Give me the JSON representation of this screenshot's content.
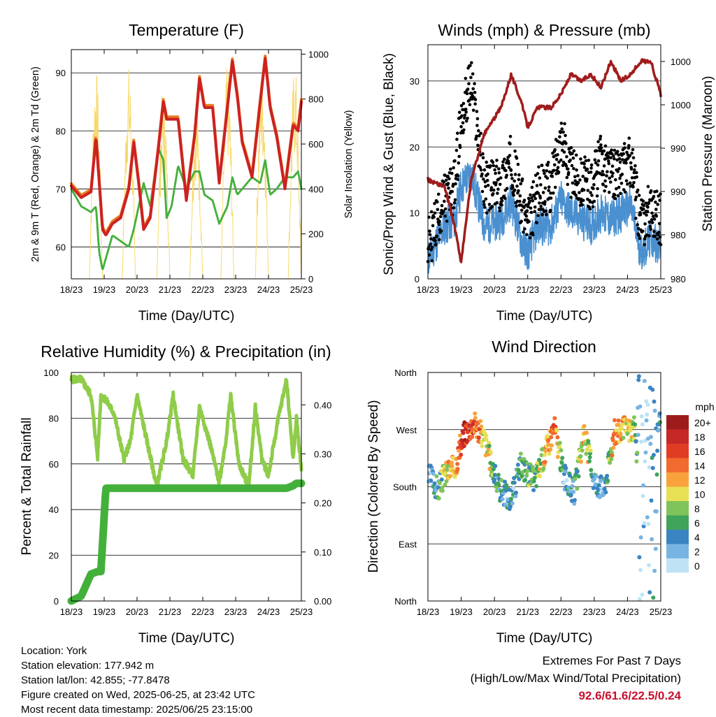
{
  "colors": {
    "temp_red": "#cc2222",
    "temp_orange": "#e87a22",
    "dewpoint_green": "#44b03c",
    "solar_yellow": "#f7d96a",
    "wind_blue": "#4a90d0",
    "gust_black": "#000000",
    "pressure_maroon": "#a01c1c",
    "rh_lightgreen": "#8fcc4a",
    "rain_green": "#44b03c",
    "extremes_red": "#c8102e"
  },
  "x_ticks": [
    "18/23",
    "19/23",
    "20/23",
    "21/23",
    "22/23",
    "23/23",
    "24/23",
    "25/23"
  ],
  "chart_data": [
    {
      "type": "line",
      "id": "temperature",
      "title": "Temperature (F)",
      "xlabel": "Time (Day/UTC)",
      "ylabel": "2m & 9m T (Red, Orange) & 2m Td (Green)",
      "ylabel_right": "Solar Insolation (Yellow)",
      "ylim": [
        54.5,
        94
      ],
      "y_ticks": [
        60,
        70,
        80,
        90
      ],
      "y2lim": [
        0,
        1020
      ],
      "y2_ticks": [
        0,
        200,
        400,
        600,
        800,
        1000
      ],
      "grid": true,
      "x": [
        0,
        0.3,
        0.6,
        0.75,
        0.85,
        0.95,
        1.05,
        1.25,
        1.5,
        1.75,
        1.9,
        2.05,
        2.2,
        2.4,
        2.65,
        2.8,
        2.9,
        3.05,
        3.25,
        3.5,
        3.75,
        3.9,
        4.05,
        4.3,
        4.5,
        4.75,
        4.9,
        5.05,
        5.2,
        5.5,
        5.75,
        5.9,
        6.05,
        6.25,
        6.5,
        6.75,
        6.9,
        7.0
      ],
      "series": [
        {
          "name": "2m & 9m T",
          "y": [
            70.5,
            68.5,
            69.5,
            79,
            71,
            63,
            62,
            64,
            65,
            70,
            78,
            71,
            63,
            65,
            77,
            85,
            82,
            82,
            82,
            68,
            79,
            89,
            84,
            84,
            71,
            84,
            92,
            86,
            78,
            72,
            85,
            92.5,
            84,
            79,
            70,
            81,
            80,
            85
          ]
        },
        {
          "name": "2m Td",
          "y": [
            70,
            67,
            66,
            67,
            59,
            56,
            58,
            62,
            61,
            60,
            63,
            67,
            71,
            67,
            77,
            75,
            65,
            67,
            74,
            70,
            73,
            73,
            69,
            68,
            64,
            67,
            72,
            69,
            70,
            72,
            71,
            75,
            69,
            70,
            72,
            72,
            73,
            70
          ]
        }
      ],
      "solar_series": {
        "name": "Solar Insolation",
        "peaks_x": [
          0.75,
          1.75,
          2.8,
          3.8,
          4.75,
          5.8,
          6.8
        ],
        "peaks_y": [
          940,
          950,
          860,
          790,
          950,
          960,
          960
        ]
      }
    },
    {
      "type": "line",
      "id": "winds",
      "title": "Winds (mph) & Pressure (mb)",
      "xlabel": "Time (Day/UTC)",
      "ylabel": "Sonic/Prop Wind & Gust (Blue, Black)",
      "ylabel_right": "Station Pressure (Maroon)",
      "ylim": [
        0,
        35.5
      ],
      "y_ticks": [
        0,
        10,
        20,
        30
      ],
      "y2_tick_labels": [
        "980",
        "980",
        "990",
        "990",
        "1000",
        "1000"
      ],
      "grid": true,
      "x": [
        0,
        0.5,
        0.8,
        1.0,
        1.3,
        1.7,
        2.2,
        2.5,
        2.8,
        3.0,
        3.3,
        3.7,
        4.0,
        4.3,
        4.6,
        4.9,
        5.2,
        5.5,
        5.8,
        6.1,
        6.4,
        6.7,
        7.0
      ],
      "series": [
        {
          "name": "Sonic/Prop Wind",
          "y": [
            3,
            8,
            9,
            14,
            16,
            8,
            9,
            12,
            6,
            4,
            8,
            8,
            12,
            10,
            9,
            8,
            10,
            9,
            10,
            11,
            4,
            6,
            5
          ]
        },
        {
          "name": "Gust",
          "y": [
            5,
            12,
            14,
            24,
            30,
            14,
            14,
            18,
            12,
            8,
            13,
            14,
            22,
            16,
            15,
            14,
            18,
            16,
            16,
            18,
            8,
            11,
            9
          ]
        },
        {
          "name": "Station Pressure",
          "y": [
            15,
            14,
            8,
            2.5,
            15,
            22,
            26,
            31,
            27,
            23,
            26,
            26,
            28,
            31,
            30,
            31,
            29,
            33,
            30,
            31,
            33,
            33,
            28
          ]
        }
      ]
    },
    {
      "type": "line",
      "id": "humidity",
      "title": "Relative Humidity (%) & Precipitation (in)",
      "xlabel": "Time (Day/UTC)",
      "ylabel": "Percent & Total Rainfall",
      "ylim": [
        0,
        100
      ],
      "y_ticks": [
        0,
        20,
        40,
        60,
        80,
        100
      ],
      "y2lim": [
        0,
        0.466
      ],
      "y2_tick_labels": [
        "0.00",
        "0.10",
        "0.20",
        "0.30",
        "0.40"
      ],
      "grid": true,
      "x": [
        0,
        0.3,
        0.6,
        0.8,
        0.9,
        1.05,
        1.3,
        1.6,
        1.8,
        2.0,
        2.3,
        2.6,
        2.9,
        3.1,
        3.4,
        3.7,
        3.9,
        4.2,
        4.5,
        4.7,
        4.85,
        5.1,
        5.4,
        5.6,
        5.8,
        6.0,
        6.3,
        6.55,
        6.75,
        6.85,
        7.0
      ],
      "series": [
        {
          "name": "Relative Humidity",
          "y": [
            97,
            97,
            90,
            63,
            90,
            88,
            82,
            62,
            70,
            90,
            70,
            50,
            70,
            90,
            62,
            55,
            85,
            70,
            52,
            70,
            90,
            60,
            50,
            85,
            62,
            55,
            80,
            97,
            62,
            80,
            58
          ]
        },
        {
          "name": "Total Rainfall",
          "y": [
            0,
            0.01,
            0.055,
            0.06,
            0.06,
            0.23,
            0.23,
            0.23,
            0.23,
            0.23,
            0.23,
            0.23,
            0.23,
            0.23,
            0.23,
            0.23,
            0.23,
            0.23,
            0.23,
            0.23,
            0.23,
            0.23,
            0.23,
            0.23,
            0.23,
            0.23,
            0.23,
            0.23,
            0.235,
            0.24,
            0.24
          ]
        }
      ]
    },
    {
      "type": "scatter",
      "id": "direction",
      "title": "Wind Direction",
      "xlabel": "Time (Day/UTC)",
      "ylabel": "Direction (Colored By Speed)",
      "y_tick_labels": [
        "North",
        "East",
        "South",
        "West",
        "North"
      ],
      "ylim": [
        0,
        360
      ],
      "grid": true,
      "colorbar": {
        "title": "mph",
        "labels": [
          "20+",
          "18",
          "16",
          "14",
          "12",
          "10",
          "8",
          "6",
          "4",
          "2",
          "0"
        ],
        "colors": [
          "#9e1b1b",
          "#c62828",
          "#e03c24",
          "#f26b2e",
          "#f9a23c",
          "#e8e054",
          "#7fc45a",
          "#3fa35a",
          "#3a84c2",
          "#78b4e2",
          "#bfe3f5"
        ]
      },
      "x": [
        0.1,
        0.3,
        0.5,
        0.8,
        1.1,
        1.4,
        1.7,
        2.1,
        2.5,
        2.8,
        3.2,
        3.5,
        3.8,
        4.1,
        4.4,
        4.7,
        5.0,
        5.3,
        5.6,
        5.9,
        6.2,
        6.4,
        6.6,
        6.8,
        6.95
      ],
      "y": [
        195,
        175,
        200,
        210,
        265,
        280,
        255,
        180,
        160,
        215,
        190,
        230,
        275,
        195,
        170,
        265,
        190,
        175,
        265,
        270,
        270,
        180,
        90,
        300,
        280
      ],
      "speed": [
        4,
        6,
        10,
        14,
        18,
        16,
        12,
        6,
        4,
        6,
        8,
        12,
        16,
        4,
        6,
        12,
        5,
        4,
        14,
        12,
        10,
        2,
        1,
        6,
        4
      ]
    }
  ],
  "footer": {
    "location": "Location: York",
    "elevation": "Station elevation: 177.942 m",
    "latlon": "Station lat/lon: 42.855; -77.8478",
    "created": "Figure created on Wed, 2025-06-25, at 23:42 UTC",
    "recent": "Most recent data timestamp: 2025/06/25 23:15:00"
  },
  "extremes": {
    "title": "Extremes For Past 7 Days",
    "subtitle": "(High/Low/Max Wind/Total Precipitation)",
    "values": "92.6/61.6/22.5/0.24"
  }
}
